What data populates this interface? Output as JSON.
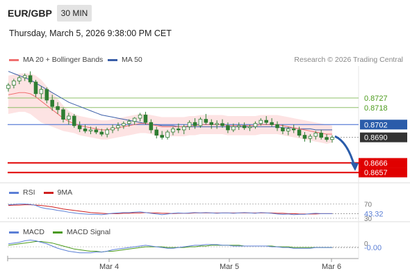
{
  "header": {
    "pair": "EUR/GBP",
    "timeframe": "30 MIN",
    "datetime": "Thursday, March 5, 2026 9:38:00 PM CET"
  },
  "legend": {
    "ma20_bb": "MA 20 + Bollinger Bands",
    "ma50": "MA 50",
    "research": "Research © 2026 Trading Central"
  },
  "rsi_legend": {
    "rsi": "RSI",
    "ma": "9MA"
  },
  "macd_legend": {
    "macd": "MACD",
    "signal": "MACD Signal"
  },
  "colors": {
    "ma20": "#f07070",
    "ma50": "#3a5ea8",
    "band": "#fde3e3",
    "candle": "#2e7d32",
    "resistance": "#8fc06a",
    "support": "#e00000",
    "pivot": "#5b7fd6",
    "current": "#333333",
    "arrow": "#2a5caa",
    "rsi": "#5b7fd6",
    "rsi_ma": "#d02020",
    "macd": "#5b7fd6",
    "macd_signal": "#4a9a1a"
  },
  "chart_data": [
    {
      "type": "candlestick",
      "ylim": [
        0.8648,
        0.8757
      ],
      "x_ticks": [
        "Mar 4",
        "Mar 5",
        "Mar 6"
      ],
      "candles": [
        [
          0.8736,
          0.8741,
          0.8733,
          0.8739
        ],
        [
          0.8739,
          0.8745,
          0.8736,
          0.8743
        ],
        [
          0.8743,
          0.8748,
          0.874,
          0.8746
        ],
        [
          0.8746,
          0.875,
          0.8743,
          0.8748
        ],
        [
          0.8748,
          0.8752,
          0.874,
          0.8742
        ],
        [
          0.8742,
          0.8744,
          0.8728,
          0.8731
        ],
        [
          0.8731,
          0.8738,
          0.8726,
          0.8735
        ],
        [
          0.8735,
          0.8737,
          0.8722,
          0.8725
        ],
        [
          0.8725,
          0.873,
          0.8715,
          0.8719
        ],
        [
          0.8719,
          0.8723,
          0.8712,
          0.8716
        ],
        [
          0.8716,
          0.8718,
          0.8704,
          0.8707
        ],
        [
          0.8707,
          0.8713,
          0.8702,
          0.871
        ],
        [
          0.871,
          0.8712,
          0.8699,
          0.8701
        ],
        [
          0.8701,
          0.8705,
          0.8695,
          0.8698
        ],
        [
          0.8698,
          0.8702,
          0.8694,
          0.8696
        ],
        [
          0.8696,
          0.87,
          0.8693,
          0.8697
        ],
        [
          0.8697,
          0.87,
          0.8693,
          0.8695
        ],
        [
          0.8695,
          0.8698,
          0.8691,
          0.8693
        ],
        [
          0.8693,
          0.8699,
          0.869,
          0.8697
        ],
        [
          0.8697,
          0.8702,
          0.8694,
          0.8699
        ],
        [
          0.8699,
          0.8704,
          0.8696,
          0.8701
        ],
        [
          0.8701,
          0.8705,
          0.8698,
          0.8703
        ],
        [
          0.8703,
          0.8707,
          0.87,
          0.8705
        ],
        [
          0.8705,
          0.8709,
          0.8702,
          0.8708
        ],
        [
          0.8708,
          0.8713,
          0.8705,
          0.8711
        ],
        [
          0.8711,
          0.8714,
          0.8702,
          0.8704
        ],
        [
          0.8704,
          0.8707,
          0.8694,
          0.8697
        ],
        [
          0.8697,
          0.87,
          0.8689,
          0.8692
        ],
        [
          0.8692,
          0.8696,
          0.8688,
          0.869
        ],
        [
          0.869,
          0.8697,
          0.8688,
          0.8695
        ],
        [
          0.8695,
          0.87,
          0.8692,
          0.8698
        ],
        [
          0.8698,
          0.8703,
          0.8694,
          0.8697
        ],
        [
          0.8697,
          0.8702,
          0.8693,
          0.87
        ],
        [
          0.87,
          0.8706,
          0.8697,
          0.8704
        ],
        [
          0.8704,
          0.8708,
          0.8698,
          0.8701
        ],
        [
          0.8701,
          0.8709,
          0.8699,
          0.8707
        ],
        [
          0.8707,
          0.8712,
          0.8702,
          0.8704
        ],
        [
          0.8704,
          0.8707,
          0.8698,
          0.8702
        ],
        [
          0.8702,
          0.8706,
          0.8698,
          0.8703
        ],
        [
          0.8703,
          0.8707,
          0.8699,
          0.8701
        ],
        [
          0.8701,
          0.8704,
          0.8694,
          0.8697
        ],
        [
          0.8697,
          0.8703,
          0.8695,
          0.87
        ],
        [
          0.87,
          0.8704,
          0.8697,
          0.8701
        ],
        [
          0.8701,
          0.8704,
          0.8697,
          0.8699
        ],
        [
          0.8699,
          0.8702,
          0.8696,
          0.87
        ],
        [
          0.87,
          0.8705,
          0.8698,
          0.8703
        ],
        [
          0.8703,
          0.8708,
          0.8701,
          0.8706
        ],
        [
          0.8706,
          0.871,
          0.8702,
          0.8704
        ],
        [
          0.8704,
          0.8708,
          0.87,
          0.8702
        ],
        [
          0.8702,
          0.8705,
          0.8696,
          0.8699
        ],
        [
          0.8699,
          0.8702,
          0.8693,
          0.8696
        ],
        [
          0.8696,
          0.87,
          0.8692,
          0.8698
        ],
        [
          0.8698,
          0.8702,
          0.8694,
          0.8697
        ],
        [
          0.8697,
          0.87,
          0.869,
          0.8692
        ],
        [
          0.8692,
          0.8695,
          0.8686,
          0.8689
        ],
        [
          0.8689,
          0.8693,
          0.8685,
          0.8691
        ],
        [
          0.8691,
          0.8696,
          0.8688,
          0.8694
        ],
        [
          0.8694,
          0.8697,
          0.8688,
          0.869
        ],
        [
          0.869,
          0.8693,
          0.8686,
          0.8688
        ],
        [
          0.8688,
          0.8692,
          0.8685,
          0.869
        ]
      ],
      "ma20": [
        0.873,
        0.8731,
        0.8732,
        0.8732,
        0.8731,
        0.8728,
        0.8724,
        0.872,
        0.8716,
        0.8712,
        0.8708,
        0.8705,
        0.8703,
        0.8701,
        0.87,
        0.8699,
        0.8698,
        0.8697,
        0.8697,
        0.8698,
        0.8699,
        0.87,
        0.8701,
        0.8702,
        0.8703,
        0.8703,
        0.8702,
        0.8701,
        0.87,
        0.87,
        0.87,
        0.87,
        0.87,
        0.8701,
        0.8701,
        0.8702,
        0.8702,
        0.8702,
        0.8702,
        0.8702,
        0.8701,
        0.8701,
        0.8701,
        0.8701,
        0.8701,
        0.8701,
        0.8702,
        0.8702,
        0.8702,
        0.8702,
        0.8701,
        0.87,
        0.8699,
        0.8698,
        0.8697,
        0.8696,
        0.8695,
        0.8694,
        0.8693,
        0.8693
      ],
      "bb_upper": [
        0.8748,
        0.8749,
        0.875,
        0.875,
        0.875,
        0.8748,
        0.8744,
        0.8738,
        0.8732,
        0.8726,
        0.872,
        0.8715,
        0.8712,
        0.871,
        0.8709,
        0.8708,
        0.8707,
        0.8706,
        0.8706,
        0.8707,
        0.8708,
        0.8709,
        0.871,
        0.8711,
        0.8712,
        0.8712,
        0.8711,
        0.871,
        0.8709,
        0.8709,
        0.8709,
        0.8709,
        0.8709,
        0.871,
        0.871,
        0.8711,
        0.8711,
        0.8711,
        0.8711,
        0.8711,
        0.871,
        0.871,
        0.871,
        0.871,
        0.871,
        0.871,
        0.8711,
        0.8711,
        0.8711,
        0.8711,
        0.871,
        0.8709,
        0.8708,
        0.8707,
        0.8706,
        0.8705,
        0.8704,
        0.8703,
        0.8702,
        0.8701
      ],
      "bb_lower": [
        0.8712,
        0.8713,
        0.8714,
        0.8714,
        0.8712,
        0.8708,
        0.8704,
        0.8702,
        0.87,
        0.8698,
        0.8696,
        0.8695,
        0.8694,
        0.8692,
        0.8691,
        0.869,
        0.8689,
        0.8688,
        0.8688,
        0.8689,
        0.869,
        0.8691,
        0.8692,
        0.8693,
        0.8694,
        0.8694,
        0.8693,
        0.8692,
        0.8691,
        0.8691,
        0.8691,
        0.8691,
        0.8691,
        0.8692,
        0.8692,
        0.8693,
        0.8693,
        0.8693,
        0.8693,
        0.8693,
        0.8692,
        0.8692,
        0.8692,
        0.8692,
        0.8692,
        0.8692,
        0.8693,
        0.8693,
        0.8693,
        0.8693,
        0.8692,
        0.8691,
        0.869,
        0.8689,
        0.8688,
        0.8687,
        0.8686,
        0.8685,
        0.8684,
        0.8685
      ],
      "ma50": [
        0.8752,
        0.875,
        0.8748,
        0.8746,
        0.8744,
        0.8741,
        0.8738,
        0.8735,
        0.8732,
        0.8729,
        0.8726,
        0.8723,
        0.8721,
        0.8719,
        0.8717,
        0.8715,
        0.8713,
        0.8711,
        0.871,
        0.8709,
        0.8708,
        0.8707,
        0.8706,
        0.8705,
        0.8704,
        0.8703,
        0.8702,
        0.8702,
        0.8701,
        0.8701,
        0.8701,
        0.87,
        0.87,
        0.87,
        0.87,
        0.87,
        0.87,
        0.87,
        0.87,
        0.87,
        0.87,
        0.87,
        0.87,
        0.87,
        0.87,
        0.87,
        0.87,
        0.87,
        0.87,
        0.87,
        0.8699,
        0.8699,
        0.8699,
        0.8698,
        0.8698,
        0.8698,
        0.8697,
        0.8697,
        0.8697,
        0.8697
      ],
      "levels": [
        {
          "value": 0.8727,
          "label": "0.8727",
          "kind": "resistance"
        },
        {
          "value": 0.8718,
          "label": "0.8718",
          "kind": "resistance"
        },
        {
          "value": 0.8702,
          "label": "0.8702",
          "kind": "pivot"
        },
        {
          "value": 0.869,
          "label": "0.8690",
          "kind": "current"
        },
        {
          "value": 0.8666,
          "label": "0.8666",
          "kind": "support"
        },
        {
          "value": 0.8657,
          "label": "0.8657",
          "kind": "support"
        }
      ],
      "arrow": {
        "from": 0.8691,
        "to": 0.8663
      }
    },
    {
      "type": "line",
      "name": "RSI",
      "ylim": [
        30,
        75
      ],
      "levels": [
        {
          "value": 70,
          "label": "70"
        },
        {
          "value": 30,
          "label": "30"
        }
      ],
      "current_label": "43.32",
      "rsi": [
        68,
        69,
        70,
        70,
        69,
        66,
        60,
        57,
        55,
        52,
        50,
        47,
        45,
        43,
        42,
        41,
        41,
        40,
        42,
        44,
        45,
        46,
        46,
        47,
        48,
        46,
        44,
        42,
        40,
        42,
        44,
        45,
        44,
        45,
        46,
        45,
        46,
        45,
        44,
        45,
        45,
        44,
        45,
        46,
        45,
        44,
        46,
        45,
        44,
        42,
        41,
        42,
        40,
        41,
        41,
        43,
        44,
        43,
        43,
        43
      ],
      "rsi_ma": [
        66,
        67,
        67,
        68,
        68,
        67,
        66,
        64,
        62,
        59,
        56,
        54,
        52,
        50,
        48,
        46,
        45,
        44,
        43,
        43,
        43,
        44,
        44,
        45,
        45,
        46,
        45,
        45,
        44,
        44,
        43,
        44,
        44,
        44,
        45,
        45,
        45,
        45,
        45,
        45,
        45,
        45,
        45,
        45,
        45,
        45,
        45,
        45,
        45,
        44,
        44,
        43,
        43,
        42,
        42,
        42,
        42,
        43,
        43,
        43
      ]
    },
    {
      "type": "line",
      "name": "MACD",
      "ylim": [
        -0.0012,
        0.0014
      ],
      "levels": [
        {
          "value": 0,
          "label": "0"
        }
      ],
      "current_label": "-0.00",
      "macd": [
        0.0004,
        0.0005,
        0.0006,
        0.0008,
        0.0009,
        0.0008,
        0.0006,
        0.0004,
        0.0001,
        -0.0002,
        -0.0004,
        -0.0006,
        -0.0007,
        -0.0008,
        -0.0008,
        -0.0008,
        -0.0007,
        -0.0007,
        -0.0006,
        -0.0004,
        -0.0003,
        -0.0002,
        -0.0001,
        0.0,
        0.0001,
        0.0002,
        0.0001,
        0.0,
        -0.0001,
        -0.0002,
        -0.0002,
        -0.0001,
        0.0,
        0.0001,
        0.0002,
        0.0002,
        0.0003,
        0.0003,
        0.0003,
        0.0002,
        0.0002,
        0.0001,
        0.0001,
        0.0001,
        0.0001,
        0.0001,
        0.0001,
        0.0001,
        0.0,
        0.0,
        -0.0001,
        -0.0001,
        -0.0002,
        -0.0002,
        -0.0002,
        -0.0002,
        -0.0001,
        -0.0001,
        -0.0001,
        -0.0001
      ],
      "signal": [
        0.0002,
        0.0003,
        0.0004,
        0.0005,
        0.0006,
        0.0007,
        0.0007,
        0.0006,
        0.0005,
        0.0003,
        0.0001,
        -0.0001,
        -0.0003,
        -0.0004,
        -0.0005,
        -0.0006,
        -0.0006,
        -0.0007,
        -0.0006,
        -0.0006,
        -0.0005,
        -0.0004,
        -0.0003,
        -0.0002,
        -0.0001,
        0.0,
        0.0,
        0.0,
        0.0,
        -0.0001,
        -0.0001,
        -0.0001,
        -0.0001,
        0.0,
        0.0,
        0.0001,
        0.0001,
        0.0002,
        0.0002,
        0.0002,
        0.0002,
        0.0002,
        0.0002,
        0.0001,
        0.0001,
        0.0001,
        0.0001,
        0.0001,
        0.0001,
        0.0,
        0.0,
        0.0,
        -0.0001,
        -0.0001,
        -0.0001,
        -0.0001,
        -0.0001,
        -0.0001,
        -0.0001,
        -0.0001
      ]
    }
  ]
}
